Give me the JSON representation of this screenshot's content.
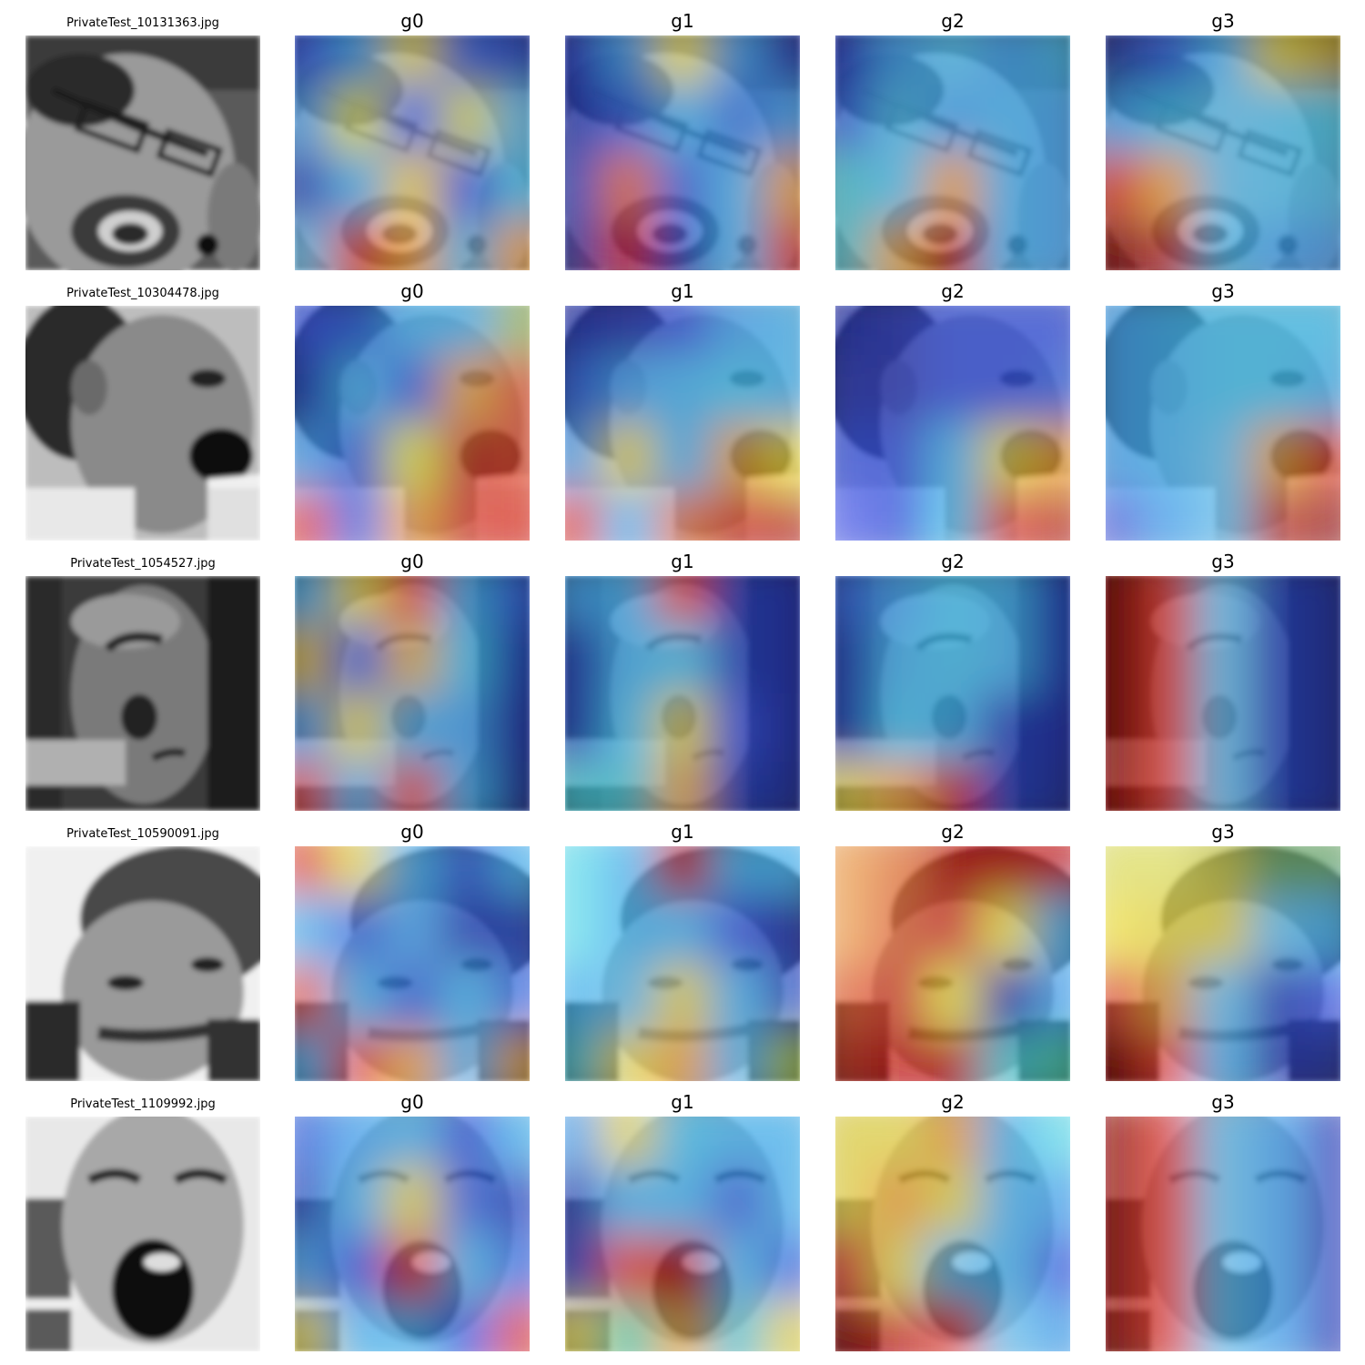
{
  "figure": {
    "layer_titles": [
      "g0",
      "g1",
      "g2",
      "g3"
    ],
    "rows": [
      {
        "filename": "PrivateTest_10131363.jpg",
        "face": "glasses-shouting",
        "heatmaps": {
          "g0": [
            [
              "#3050e0",
              "#30a0f0",
              "#e0d040",
              "#3060e0",
              "#2040c0"
            ],
            [
              "#40a0f0",
              "#e0e040",
              "#3060f0",
              "#d0d050",
              "#60c0f0"
            ],
            [
              "#2040c0",
              "#40b0f0",
              "#f0d040",
              "#3050e0",
              "#40c0f0"
            ],
            [
              "#60c0f0",
              "#e03020",
              "#f0a030",
              "#40b0e0",
              "#f0a030"
            ]
          ],
          "g1": [
            [
              "#2030c0",
              "#40a0f0",
              "#f0e040",
              "#40a0f0",
              "#2030b0"
            ],
            [
              "#2030b0",
              "#3060e0",
              "#40b0f0",
              "#3070e0",
              "#40a0f0"
            ],
            [
              "#2040c0",
              "#e06030",
              "#3060e0",
              "#40b0f0",
              "#f0a030"
            ],
            [
              "#2030a0",
              "#c01010",
              "#2040c0",
              "#40b0f0",
              "#e03020"
            ]
          ],
          "g2": [
            [
              "#2030c0",
              "#40a0f0",
              "#50c0f0",
              "#40a0f0",
              "#40b0e0"
            ],
            [
              "#3060e0",
              "#50c0f0",
              "#40a0f0",
              "#40b0f0",
              "#40a0f0"
            ],
            [
              "#40c0d0",
              "#50c0f0",
              "#f0a030",
              "#40b0f0",
              "#40a0f0"
            ],
            [
              "#40c0d0",
              "#e0a030",
              "#c01010",
              "#40b0f0",
              "#40a0f0"
            ]
          ],
          "g3": [
            [
              "#2030a0",
              "#3060e0",
              "#40b0f0",
              "#e0d040",
              "#c0a020"
            ],
            [
              "#40a0f0",
              "#40c0f0",
              "#60c0f0",
              "#50c0f0",
              "#40c0e0"
            ],
            [
              "#e03020",
              "#f0a030",
              "#60c0f0",
              "#50c0f0",
              "#40b0e0"
            ],
            [
              "#800000",
              "#c02020",
              "#40b0e0",
              "#40a0f0",
              "#4090e0"
            ]
          ]
        }
      },
      {
        "filename": "PrivateTest_10304478.jpg",
        "face": "profile-shouting",
        "heatmaps": {
          "g0": [
            [
              "#3050e0",
              "#3060e0",
              "#40b0f0",
              "#40b0f0",
              "#a0c060"
            ],
            [
              "#2040c0",
              "#40b0f0",
              "#3060e0",
              "#e0a030",
              "#e05030"
            ],
            [
              "#40a0f0",
              "#3060e0",
              "#e0e040",
              "#d04030",
              "#e05030"
            ],
            [
              "#e04030",
              "#3060e0",
              "#f0a030",
              "#e04030",
              "#e03020"
            ]
          ],
          "g1": [
            [
              "#2030b0",
              "#3040c0",
              "#3050e0",
              "#40a0f0",
              "#40b0f0"
            ],
            [
              "#3060e0",
              "#40a0f0",
              "#40b0f0",
              "#40c0f0",
              "#40b0f0"
            ],
            [
              "#40a0f0",
              "#e0d040",
              "#40b0f0",
              "#e0a030",
              "#f0e040"
            ],
            [
              "#e04030",
              "#40b0f0",
              "#e07030",
              "#d03020",
              "#c03020"
            ]
          ],
          "g2": [
            [
              "#2030b0",
              "#3040c0",
              "#3050e0",
              "#3050e0",
              "#3050e0"
            ],
            [
              "#3040c0",
              "#3040c0",
              "#3050e0",
              "#3050e0",
              "#3060e0"
            ],
            [
              "#3050e0",
              "#3050e0",
              "#40b0f0",
              "#e0d040",
              "#f0a030"
            ],
            [
              "#5060f0",
              "#3050e0",
              "#40c0f0",
              "#e04030",
              "#c03020"
            ]
          ],
          "g3": [
            [
              "#40a0f0",
              "#40b0f0",
              "#40c0f0",
              "#40c0f0",
              "#40c0f0"
            ],
            [
              "#40a0f0",
              "#40b0f0",
              "#40c0f0",
              "#40c0f0",
              "#40b0f0"
            ],
            [
              "#40a0f0",
              "#40b0f0",
              "#60c0f0",
              "#e0a030",
              "#e04030"
            ],
            [
              "#5060e0",
              "#40a0f0",
              "#60c0f0",
              "#c03020",
              "#a02020"
            ]
          ]
        }
      },
      {
        "filename": "PrivateTest_1054527.jpg",
        "face": "profile-dark",
        "heatmaps": {
          "g0": [
            [
              "#40b0f0",
              "#e0d040",
              "#e04030",
              "#40b0f0",
              "#3060e0"
            ],
            [
              "#e0c040",
              "#3060e0",
              "#e0b040",
              "#40c0f0",
              "#2040c0"
            ],
            [
              "#40a0f0",
              "#e0d040",
              "#40b0f0",
              "#40a0f0",
              "#2030b0"
            ],
            [
              "#e04030",
              "#40b0f0",
              "#e04030",
              "#40b0f0",
              "#2030a0"
            ]
          ],
          "g1": [
            [
              "#40a0f0",
              "#40b0f0",
              "#e04030",
              "#2040c0",
              "#2030b0"
            ],
            [
              "#2040c0",
              "#40b0f0",
              "#40c0f0",
              "#2040c0",
              "#2030b0"
            ],
            [
              "#2040c0",
              "#40c0f0",
              "#e0d040",
              "#3050e0",
              "#2030b0"
            ],
            [
              "#40c0d0",
              "#40c0d0",
              "#e0a030",
              "#2040c0",
              "#2030a0"
            ]
          ],
          "g2": [
            [
              "#3060e0",
              "#40a0f0",
              "#40c0f0",
              "#40b0f0",
              "#2040c0"
            ],
            [
              "#2040c0",
              "#40b0f0",
              "#40c0f0",
              "#40b0f0",
              "#2040c0"
            ],
            [
              "#2040c0",
              "#40c0f0",
              "#40b0f0",
              "#2040c0",
              "#2030b0"
            ],
            [
              "#e0d040",
              "#f0a030",
              "#c01010",
              "#2040c0",
              "#2030a0"
            ]
          ],
          "g3": [
            [
              "#800000",
              "#e03020",
              "#60c0f0",
              "#2040c0",
              "#2030a0"
            ],
            [
              "#800000",
              "#e03020",
              "#60c0f0",
              "#2040c0",
              "#2030a0"
            ],
            [
              "#800000",
              "#e03020",
              "#60c0f0",
              "#2040c0",
              "#2030a0"
            ],
            [
              "#900000",
              "#e03020",
              "#60c0f0",
              "#2040c0",
              "#2030a0"
            ]
          ]
        }
      },
      {
        "filename": "PrivateTest_10590091.jpg",
        "face": "smirk-man",
        "heatmaps": {
          "g0": [
            [
              "#e04030",
              "#e0d040",
              "#40b0f0",
              "#3060e0",
              "#40b0f0"
            ],
            [
              "#40b0f0",
              "#3060e0",
              "#40a0f0",
              "#2040c0",
              "#2040c0"
            ],
            [
              "#e05030",
              "#40b0f0",
              "#3060e0",
              "#40b0f0",
              "#3060e0"
            ],
            [
              "#40b0f0",
              "#e04030",
              "#f0a030",
              "#40b0f0",
              "#e0a030"
            ]
          ],
          "g1": [
            [
              "#60e0f0",
              "#40b0f0",
              "#c01010",
              "#40b0f0",
              "#40b0f0"
            ],
            [
              "#60e0f0",
              "#40b0f0",
              "#40b0f0",
              "#3050e0",
              "#2030b0"
            ],
            [
              "#40b0f0",
              "#60c0f0",
              "#e0d040",
              "#40b0f0",
              "#2040c0"
            ],
            [
              "#40c0d0",
              "#e0d040",
              "#f0a030",
              "#40b0f0",
              "#a0c040"
            ]
          ],
          "g2": [
            [
              "#f0a050",
              "#e07030",
              "#c01010",
              "#c01010",
              "#c01010"
            ],
            [
              "#f0a050",
              "#e06030",
              "#e04030",
              "#f0e040",
              "#40b0f0"
            ],
            [
              "#e06030",
              "#e04030",
              "#f0e040",
              "#2030b0",
              "#40a0f0"
            ],
            [
              "#c03020",
              "#c01010",
              "#c01010",
              "#40c0d0",
              "#40c0a0"
            ]
          ],
          "g3": [
            [
              "#e0e060",
              "#e0e060",
              "#c0c040",
              "#60a060",
              "#60a060"
            ],
            [
              "#f0e040",
              "#e0d040",
              "#e0d040",
              "#60c0f0",
              "#40b0f0"
            ],
            [
              "#e04030",
              "#e0a030",
              "#60c0f0",
              "#2040c0",
              "#3050e0"
            ],
            [
              "#800000",
              "#e03020",
              "#40b0f0",
              "#2030b0",
              "#2030a0"
            ]
          ]
        }
      },
      {
        "filename": "PrivateTest_1109992.jpg",
        "face": "screaming-man",
        "heatmaps": {
          "g0": [
            [
              "#3060e0",
              "#40a0f0",
              "#40b0f0",
              "#3050e0",
              "#40b0f0"
            ],
            [
              "#2040c0",
              "#40b0f0",
              "#e0d040",
              "#3060e0",
              "#2040c0"
            ],
            [
              "#40a0f0",
              "#3050e0",
              "#e04030",
              "#40b0f0",
              "#3060e0"
            ],
            [
              "#e0d040",
              "#40b0f0",
              "#40b0f0",
              "#3050e0",
              "#e04030"
            ]
          ],
          "g1": [
            [
              "#40a0f0",
              "#e0d040",
              "#40c0f0",
              "#40b0f0",
              "#40b0f0"
            ],
            [
              "#2030b0",
              "#40b0f0",
              "#40b0f0",
              "#3060e0",
              "#40b0f0"
            ],
            [
              "#2040c0",
              "#e04030",
              "#c01010",
              "#40b0f0",
              "#3060e0"
            ],
            [
              "#e0d040",
              "#40c0a0",
              "#e0a030",
              "#40c0d0",
              "#e0d040"
            ]
          ],
          "g2": [
            [
              "#e0d040",
              "#e0d040",
              "#f0a030",
              "#40b0f0",
              "#60e0f0"
            ],
            [
              "#e0d040",
              "#f0a030",
              "#e0d040",
              "#40b0f0",
              "#40a0f0"
            ],
            [
              "#e04030",
              "#e0d040",
              "#60c0f0",
              "#40b0f0",
              "#3050e0"
            ],
            [
              "#800000",
              "#c01010",
              "#e04030",
              "#60c0f0",
              "#40a0f0"
            ]
          ],
          "g3": [
            [
              "#900000",
              "#e03020",
              "#60c0f0",
              "#40a0f0",
              "#3040c0"
            ],
            [
              "#900000",
              "#e03020",
              "#60c0f0",
              "#40a0f0",
              "#3040c0"
            ],
            [
              "#900000",
              "#e03020",
              "#60c0f0",
              "#40a0f0",
              "#3040c0"
            ],
            [
              "#900000",
              "#e03020",
              "#60c0f0",
              "#40a0f0",
              "#3040c0"
            ]
          ]
        }
      }
    ]
  }
}
